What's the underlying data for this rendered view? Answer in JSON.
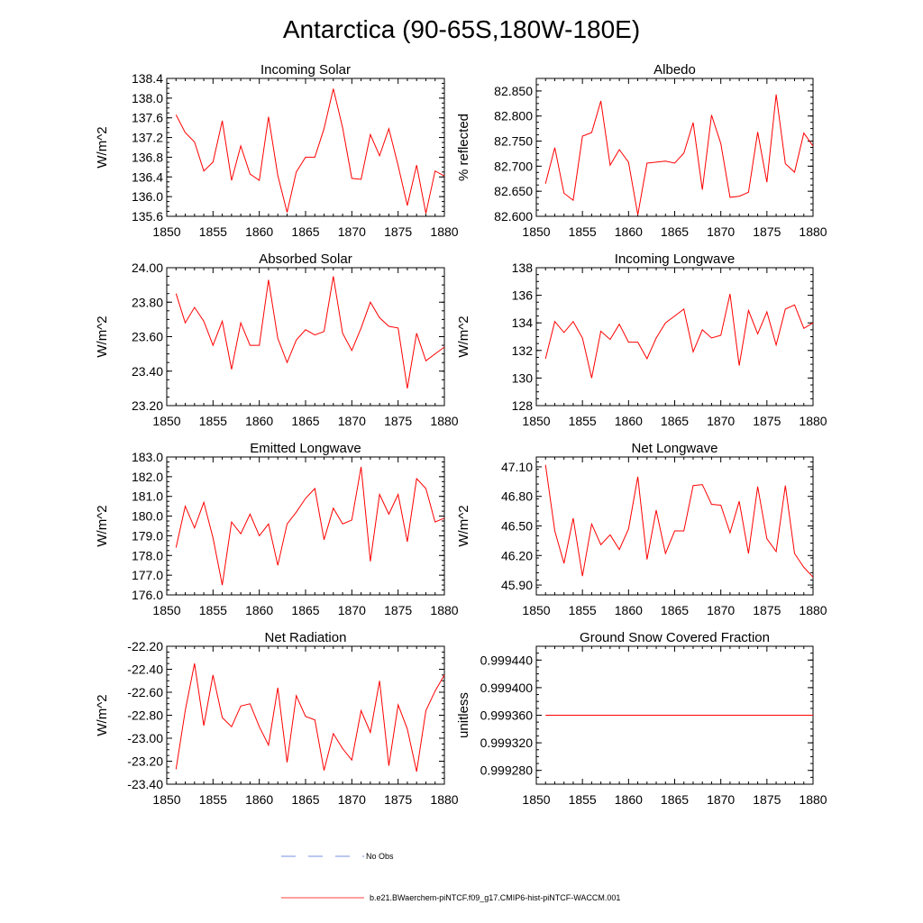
{
  "figure": {
    "title": "Antarctica (90-65S,180W-180E)",
    "line_color": "#ff0000",
    "obs_color": "#4a6bd8"
  },
  "legend": {
    "obs_label": "No Obs",
    "model_label": "b.e21.BWaerchem-piNTCF.f09_g17.CMIP6-hist-piNTCF-WACCM.001"
  },
  "chart_data": [
    {
      "type": "line",
      "title": "Incoming Solar",
      "ylabel": "W/m^2",
      "xlim": [
        1850,
        1880
      ],
      "ylim": [
        135.6,
        138.4
      ],
      "x_ticks": [
        "1850",
        "1855",
        "1860",
        "1865",
        "1870",
        "1875",
        "1880"
      ],
      "y_ticks": [
        "135.6",
        "136.0",
        "136.4",
        "136.8",
        "137.2",
        "137.6",
        "138.0",
        "138.4"
      ],
      "x": [
        1851,
        1852,
        1853,
        1854,
        1855,
        1856,
        1857,
        1858,
        1859,
        1860,
        1861,
        1862,
        1863,
        1864,
        1865,
        1866,
        1867,
        1868,
        1869,
        1870,
        1871,
        1872,
        1873,
        1874,
        1875,
        1876,
        1877,
        1878,
        1879,
        1880
      ],
      "values": [
        137.66,
        137.3,
        137.11,
        136.52,
        136.7,
        137.54,
        136.33,
        137.03,
        136.46,
        136.33,
        137.62,
        136.43,
        135.68,
        136.5,
        136.8,
        136.8,
        137.38,
        138.19,
        137.4,
        136.37,
        136.35,
        137.26,
        136.83,
        137.38,
        136.63,
        135.82,
        136.64,
        135.66,
        136.52,
        136.42
      ],
      "series_name": "b.e21.BWaerchem-piNTCF.f09_g17.CMIP6-hist-piNTCF-WACCM.001"
    },
    {
      "type": "line",
      "title": "Albedo",
      "ylabel": "% reflected",
      "xlim": [
        1850,
        1880
      ],
      "ylim": [
        82.6,
        82.875
      ],
      "x_ticks": [
        "1850",
        "1855",
        "1860",
        "1865",
        "1870",
        "1875",
        "1880"
      ],
      "y_ticks": [
        "82.600",
        "82.650",
        "82.700",
        "82.750",
        "82.800",
        "82.850"
      ],
      "x": [
        1851,
        1852,
        1853,
        1854,
        1855,
        1856,
        1857,
        1858,
        1859,
        1860,
        1861,
        1862,
        1863,
        1864,
        1865,
        1866,
        1867,
        1868,
        1869,
        1870,
        1871,
        1872,
        1873,
        1874,
        1875,
        1876,
        1877,
        1878,
        1879,
        1880
      ],
      "values": [
        82.665,
        82.737,
        82.646,
        82.632,
        82.76,
        82.767,
        82.83,
        82.702,
        82.733,
        82.708,
        82.603,
        82.706,
        82.708,
        82.71,
        82.706,
        82.726,
        82.787,
        82.653,
        82.802,
        82.745,
        82.638,
        82.64,
        82.648,
        82.768,
        82.668,
        82.843,
        82.705,
        82.688,
        82.766,
        82.74
      ],
      "series_name": "b.e21.BWaerchem-piNTCF.f09_g17.CMIP6-hist-piNTCF-WACCM.001"
    },
    {
      "type": "line",
      "title": "Absorbed Solar",
      "ylabel": "W/m^2",
      "xlim": [
        1850,
        1880
      ],
      "ylim": [
        23.2,
        24.0
      ],
      "x_ticks": [
        "1850",
        "1855",
        "1860",
        "1865",
        "1870",
        "1875",
        "1880"
      ],
      "y_ticks": [
        "23.20",
        "23.40",
        "23.60",
        "23.80",
        "24.00"
      ],
      "x": [
        1851,
        1852,
        1853,
        1854,
        1855,
        1856,
        1857,
        1858,
        1859,
        1860,
        1861,
        1862,
        1863,
        1864,
        1865,
        1866,
        1867,
        1868,
        1869,
        1870,
        1871,
        1872,
        1873,
        1874,
        1875,
        1876,
        1877,
        1878,
        1879,
        1880
      ],
      "values": [
        23.85,
        23.68,
        23.77,
        23.69,
        23.55,
        23.69,
        23.41,
        23.68,
        23.55,
        23.55,
        23.93,
        23.59,
        23.45,
        23.58,
        23.64,
        23.61,
        23.63,
        23.95,
        23.62,
        23.52,
        23.65,
        23.8,
        23.71,
        23.66,
        23.65,
        23.3,
        23.62,
        23.46,
        23.5,
        23.54
      ],
      "series_name": "b.e21.BWaerchem-piNTCF.f09_g17.CMIP6-hist-piNTCF-WACCM.001"
    },
    {
      "type": "line",
      "title": "Incoming Longwave",
      "ylabel": "W/m^2",
      "xlim": [
        1850,
        1880
      ],
      "ylim": [
        128,
        138
      ],
      "x_ticks": [
        "1850",
        "1855",
        "1860",
        "1865",
        "1870",
        "1875",
        "1880"
      ],
      "y_ticks": [
        "128",
        "130",
        "132",
        "134",
        "136",
        "138"
      ],
      "x": [
        1851,
        1852,
        1853,
        1854,
        1855,
        1856,
        1857,
        1858,
        1859,
        1860,
        1861,
        1862,
        1863,
        1864,
        1865,
        1866,
        1867,
        1868,
        1869,
        1870,
        1871,
        1872,
        1873,
        1874,
        1875,
        1876,
        1877,
        1878,
        1879,
        1880
      ],
      "values": [
        131.4,
        134.1,
        133.3,
        134.1,
        132.9,
        130.0,
        133.4,
        132.8,
        133.9,
        132.6,
        132.6,
        131.4,
        132.9,
        134.0,
        134.5,
        135.0,
        131.9,
        133.5,
        132.9,
        133.1,
        136.1,
        130.9,
        134.9,
        133.2,
        134.8,
        132.4,
        135.0,
        135.3,
        133.6,
        134.0
      ],
      "series_name": "b.e21.BWaerchem-piNTCF.f09_g17.CMIP6-hist-piNTCF-WACCM.001"
    },
    {
      "type": "line",
      "title": "Emitted Longwave",
      "ylabel": "W/m^2",
      "xlim": [
        1850,
        1880
      ],
      "ylim": [
        176.0,
        183.0
      ],
      "x_ticks": [
        "1850",
        "1855",
        "1860",
        "1865",
        "1870",
        "1875",
        "1880"
      ],
      "y_ticks": [
        "176.0",
        "177.0",
        "178.0",
        "179.0",
        "180.0",
        "181.0",
        "182.0",
        "183.0"
      ],
      "x": [
        1851,
        1852,
        1853,
        1854,
        1855,
        1856,
        1857,
        1858,
        1859,
        1860,
        1861,
        1862,
        1863,
        1864,
        1865,
        1866,
        1867,
        1868,
        1869,
        1870,
        1871,
        1872,
        1873,
        1874,
        1875,
        1876,
        1877,
        1878,
        1879,
        1880
      ],
      "values": [
        178.4,
        180.5,
        179.4,
        180.7,
        178.9,
        176.5,
        179.7,
        179.1,
        180.1,
        179.0,
        179.6,
        177.5,
        179.6,
        180.2,
        180.9,
        181.4,
        178.8,
        180.4,
        179.6,
        179.8,
        182.5,
        177.7,
        181.1,
        180.1,
        181.1,
        178.7,
        181.9,
        181.4,
        179.7,
        179.9
      ],
      "series_name": "b.e21.BWaerchem-piNTCF.f09_g17.CMIP6-hist-piNTCF-WACCM.001"
    },
    {
      "type": "line",
      "title": "Net Longwave",
      "ylabel": "W/m^2",
      "xlim": [
        1850,
        1880
      ],
      "ylim": [
        45.8,
        47.2
      ],
      "x_ticks": [
        "1850",
        "1855",
        "1860",
        "1865",
        "1870",
        "1875",
        "1880"
      ],
      "y_ticks": [
        "45.90",
        "46.20",
        "46.50",
        "46.80",
        "47.10"
      ],
      "x": [
        1851,
        1852,
        1853,
        1854,
        1855,
        1856,
        1857,
        1858,
        1859,
        1860,
        1861,
        1862,
        1863,
        1864,
        1865,
        1866,
        1867,
        1868,
        1869,
        1870,
        1871,
        1872,
        1873,
        1874,
        1875,
        1876,
        1877,
        1878,
        1879,
        1880
      ],
      "values": [
        47.12,
        46.45,
        46.12,
        46.58,
        45.99,
        46.52,
        46.31,
        46.41,
        46.26,
        46.47,
        47.0,
        46.16,
        46.66,
        46.22,
        46.45,
        46.45,
        46.91,
        46.92,
        46.72,
        46.71,
        46.43,
        46.75,
        46.22,
        46.9,
        46.37,
        46.24,
        46.91,
        46.22,
        46.08,
        45.98
      ],
      "series_name": "b.e21.BWaerchem-piNTCF.f09_g17.CMIP6-hist-piNTCF-WACCM.001"
    },
    {
      "type": "line",
      "title": "Net Radiation",
      "ylabel": "W/m^2",
      "xlim": [
        1850,
        1880
      ],
      "ylim": [
        -23.4,
        -22.2
      ],
      "x_ticks": [
        "1850",
        "1855",
        "1860",
        "1865",
        "1870",
        "1875",
        "1880"
      ],
      "y_ticks": [
        "-23.40",
        "-23.20",
        "-23.00",
        "-22.80",
        "-22.60",
        "-22.40",
        "-22.20"
      ],
      "x": [
        1851,
        1852,
        1853,
        1854,
        1855,
        1856,
        1857,
        1858,
        1859,
        1860,
        1861,
        1862,
        1863,
        1864,
        1865,
        1866,
        1867,
        1868,
        1869,
        1870,
        1871,
        1872,
        1873,
        1874,
        1875,
        1876,
        1877,
        1878,
        1879,
        1880
      ],
      "values": [
        -23.27,
        -22.76,
        -22.35,
        -22.89,
        -22.45,
        -22.82,
        -22.9,
        -22.72,
        -22.7,
        -22.9,
        -23.06,
        -22.56,
        -23.21,
        -22.63,
        -22.81,
        -22.84,
        -23.28,
        -22.96,
        -23.09,
        -23.19,
        -22.76,
        -22.95,
        -22.5,
        -23.24,
        -22.71,
        -22.92,
        -23.29,
        -22.76,
        -22.59,
        -22.45
      ],
      "series_name": "b.e21.BWaerchem-piNTCF.f09_g17.CMIP6-hist-piNTCF-WACCM.001"
    },
    {
      "type": "line",
      "title": "Ground Snow Covered Fraction",
      "ylabel": "unitless",
      "xlim": [
        1850,
        1880
      ],
      "ylim": [
        0.99926,
        0.99946
      ],
      "x_ticks": [
        "1850",
        "1855",
        "1860",
        "1865",
        "1870",
        "1875",
        "1880"
      ],
      "y_ticks": [
        "0.999280",
        "0.999320",
        "0.999360",
        "0.999400",
        "0.999440"
      ],
      "x": [
        1851,
        1852,
        1853,
        1854,
        1855,
        1856,
        1857,
        1858,
        1859,
        1860,
        1861,
        1862,
        1863,
        1864,
        1865,
        1866,
        1867,
        1868,
        1869,
        1870,
        1871,
        1872,
        1873,
        1874,
        1875,
        1876,
        1877,
        1878,
        1879,
        1880
      ],
      "values": [
        0.99936,
        0.99936,
        0.99936,
        0.99936,
        0.99936,
        0.99936,
        0.99936,
        0.99936,
        0.99936,
        0.99936,
        0.99936,
        0.99936,
        0.99936,
        0.99936,
        0.99936,
        0.99936,
        0.99936,
        0.99936,
        0.99936,
        0.99936,
        0.99936,
        0.99936,
        0.99936,
        0.99936,
        0.99936,
        0.99936,
        0.99936,
        0.99936,
        0.99936,
        0.99936
      ],
      "series_name": "b.e21.BWaerchem-piNTCF.f09_g17.CMIP6-hist-piNTCF-WACCM.001"
    }
  ]
}
